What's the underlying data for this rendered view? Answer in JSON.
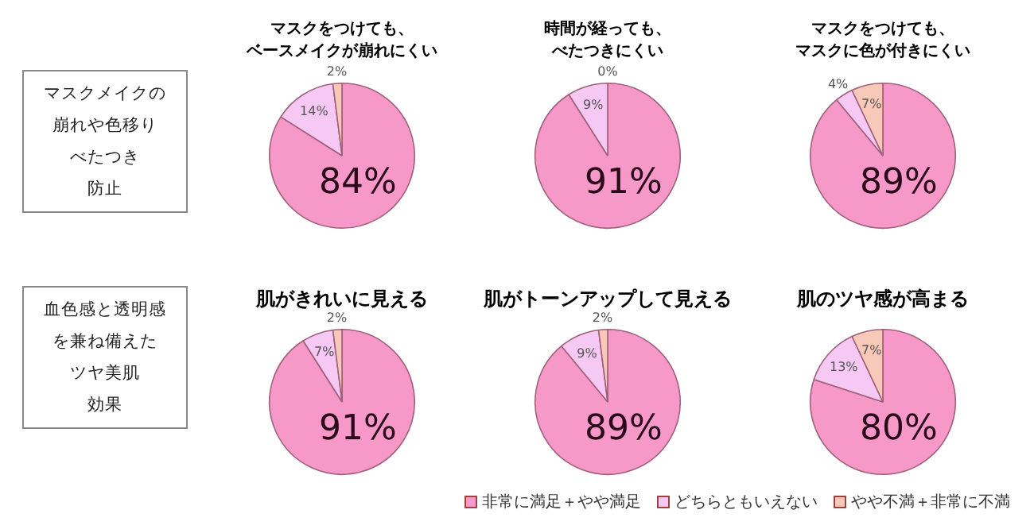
{
  "chart_data": [
    {
      "type": "other",
      "annotations": [
        "マスクメイクの",
        "崩れや色移り",
        "べたつき",
        "防止"
      ]
    },
    {
      "type": "pie",
      "title": "マスクをつけても、ベースメイクが崩れにくい",
      "categories": [
        null,
        null,
        null
      ],
      "values": [
        84,
        14,
        2
      ],
      "colors": [
        "#f799c8",
        "#f6c8f4",
        "#f8c8b8"
      ],
      "value_labels": [
        "84%",
        "14%",
        "2%"
      ]
    },
    {
      "type": "pie",
      "title": "時間が経っても、べたつきにくい",
      "categories": [
        null,
        null,
        null
      ],
      "values": [
        91,
        9,
        0
      ],
      "colors": [
        "#f799c8",
        "#f6c8f4",
        "#f8c8b8"
      ],
      "value_labels": [
        "91%",
        "9%",
        "0%"
      ]
    },
    {
      "type": "pie",
      "title": "マスクをつけても、マスクに色が付きにくい",
      "categories": [
        null,
        null,
        null
      ],
      "values": [
        89,
        4,
        7
      ],
      "colors": [
        "#f799c8",
        "#f6c8f4",
        "#f8c8b8"
      ],
      "value_labels": [
        "89%",
        "4%",
        "7%"
      ]
    },
    {
      "type": "other",
      "annotations": [
        "血色感と透明感",
        "を兼ね備えた",
        "ツヤ美肌",
        "効果"
      ]
    },
    {
      "type": "pie",
      "title": "肌がきれいに見える",
      "categories": [
        null,
        null,
        null
      ],
      "values": [
        91,
        7,
        2
      ],
      "colors": [
        "#f799c8",
        "#f6c8f4",
        "#f8c8b8"
      ],
      "value_labels": [
        "91%",
        "7%",
        "2%"
      ]
    },
    {
      "type": "pie",
      "title": "肌がトーンアップして見える",
      "categories": [
        null,
        null,
        null
      ],
      "values": [
        89,
        9,
        2
      ],
      "colors": [
        "#f799c8",
        "#f6c8f4",
        "#f8c8b8"
      ],
      "value_labels": [
        "89%",
        "9%",
        "2%"
      ]
    },
    {
      "type": "pie",
      "title": "肌のツヤ感が高まる",
      "categories": [
        "非常に満足＋やや満足",
        "どちらともいえない",
        "やや不満＋非常に不満"
      ],
      "values": [
        80,
        13,
        7
      ],
      "colors": [
        "#f799c8",
        "#f6c8f4",
        "#f8c8b8"
      ],
      "value_labels": [
        "80%",
        "13%",
        "7%"
      ],
      "legend": "bottom left"
    }
  ]
}
